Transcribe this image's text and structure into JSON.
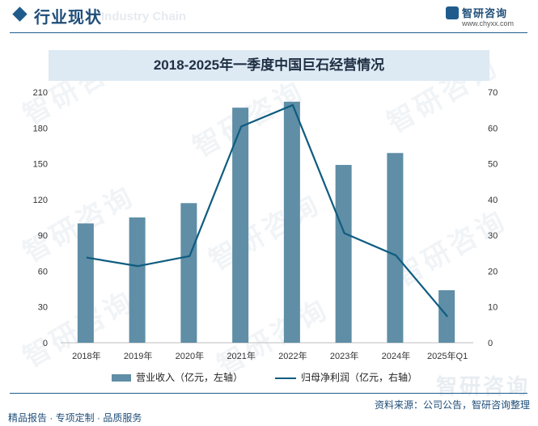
{
  "header": {
    "title": "行业现状",
    "ghost_text": "Industry Chain",
    "brand_name": "智研咨询",
    "brand_url": "www.chyxx.com"
  },
  "watermark": "智研咨询",
  "chart_data": {
    "type": "bar+line",
    "title": "2018-2025年一季度中国巨石经营情况",
    "categories": [
      "2018年",
      "2019年",
      "2020年",
      "2021年",
      "2022年",
      "2023年",
      "2024年",
      "2025年Q1"
    ],
    "series": [
      {
        "name": "营业收入（亿元，左轴）",
        "kind": "bar",
        "axis": "left",
        "color": "#5f8ea6",
        "values": [
          100,
          105,
          117,
          197,
          202,
          149,
          159,
          44
        ]
      },
      {
        "name": "归母净利润（亿元，右轴）",
        "kind": "line",
        "axis": "right",
        "color": "#0f5c80",
        "values": [
          23.8,
          21.4,
          24.2,
          60.4,
          66.4,
          30.6,
          24.4,
          7.3
        ]
      }
    ],
    "y_left": {
      "min": 0,
      "max": 210,
      "ticks": [
        0,
        30,
        60,
        90,
        120,
        150,
        180,
        210
      ]
    },
    "y_right": {
      "min": 0,
      "max": 70,
      "ticks": [
        0,
        10,
        20,
        30,
        40,
        50,
        60,
        70
      ]
    },
    "grid": false,
    "legend_position": "bottom"
  },
  "legend": {
    "bar_label": "营业收入（亿元，左轴）",
    "line_label": "归母净利润（亿元，右轴）"
  },
  "footer": {
    "left": "精品报告 · 专项定制 · 品质服务",
    "right": "资料来源：公司公告，智研咨询整理",
    "brand_ghost": "智研咨询"
  }
}
